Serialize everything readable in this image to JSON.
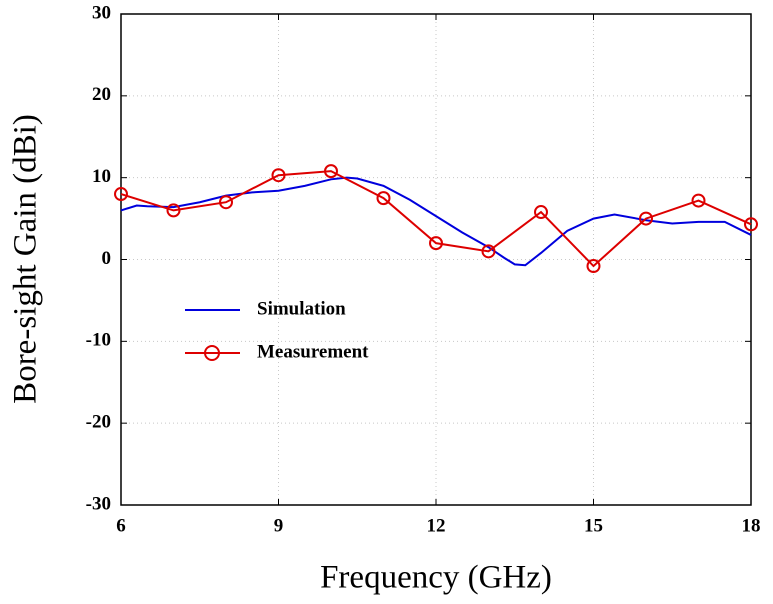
{
  "chart_data": {
    "type": "line",
    "xlabel": "Frequency (GHz)",
    "ylabel": "Bore-sight Gain (dBi)",
    "xlim": [
      6,
      18
    ],
    "xticks": [
      6,
      9,
      12,
      15,
      18
    ],
    "ylim": [
      -30,
      30
    ],
    "yticks": [
      -30,
      -20,
      -10,
      0,
      10,
      20,
      30
    ],
    "grid": true,
    "legend": "center left",
    "series": [
      {
        "name": "Simulation",
        "color": "#0000dd",
        "marker": "none",
        "x": [
          6,
          6.3,
          6.5,
          7,
          7.5,
          8,
          8.5,
          9,
          9.5,
          10,
          10.3,
          10.5,
          11,
          11.5,
          12,
          12.5,
          13,
          13.3,
          13.5,
          13.7,
          14,
          14.5,
          15,
          15.4,
          16,
          16.5,
          17,
          17.5,
          18
        ],
        "values": [
          6,
          6.6,
          6.5,
          6.4,
          7,
          7.8,
          8.2,
          8.4,
          9,
          9.8,
          10,
          9.9,
          9,
          7.3,
          5.3,
          3.3,
          1.5,
          0.2,
          -0.6,
          -0.7,
          0.8,
          3.5,
          5,
          5.5,
          4.8,
          4.4,
          4.6,
          4.6,
          3
        ]
      },
      {
        "name": "Measurement",
        "color": "#dd0000",
        "marker": "circle",
        "x": [
          6,
          7,
          8,
          9,
          10,
          11,
          12,
          13,
          14,
          15,
          16,
          17,
          18
        ],
        "values": [
          8,
          6,
          7,
          10.3,
          10.8,
          7.5,
          2,
          1,
          5.8,
          -0.8,
          5,
          7.2,
          4.3
        ]
      }
    ]
  }
}
